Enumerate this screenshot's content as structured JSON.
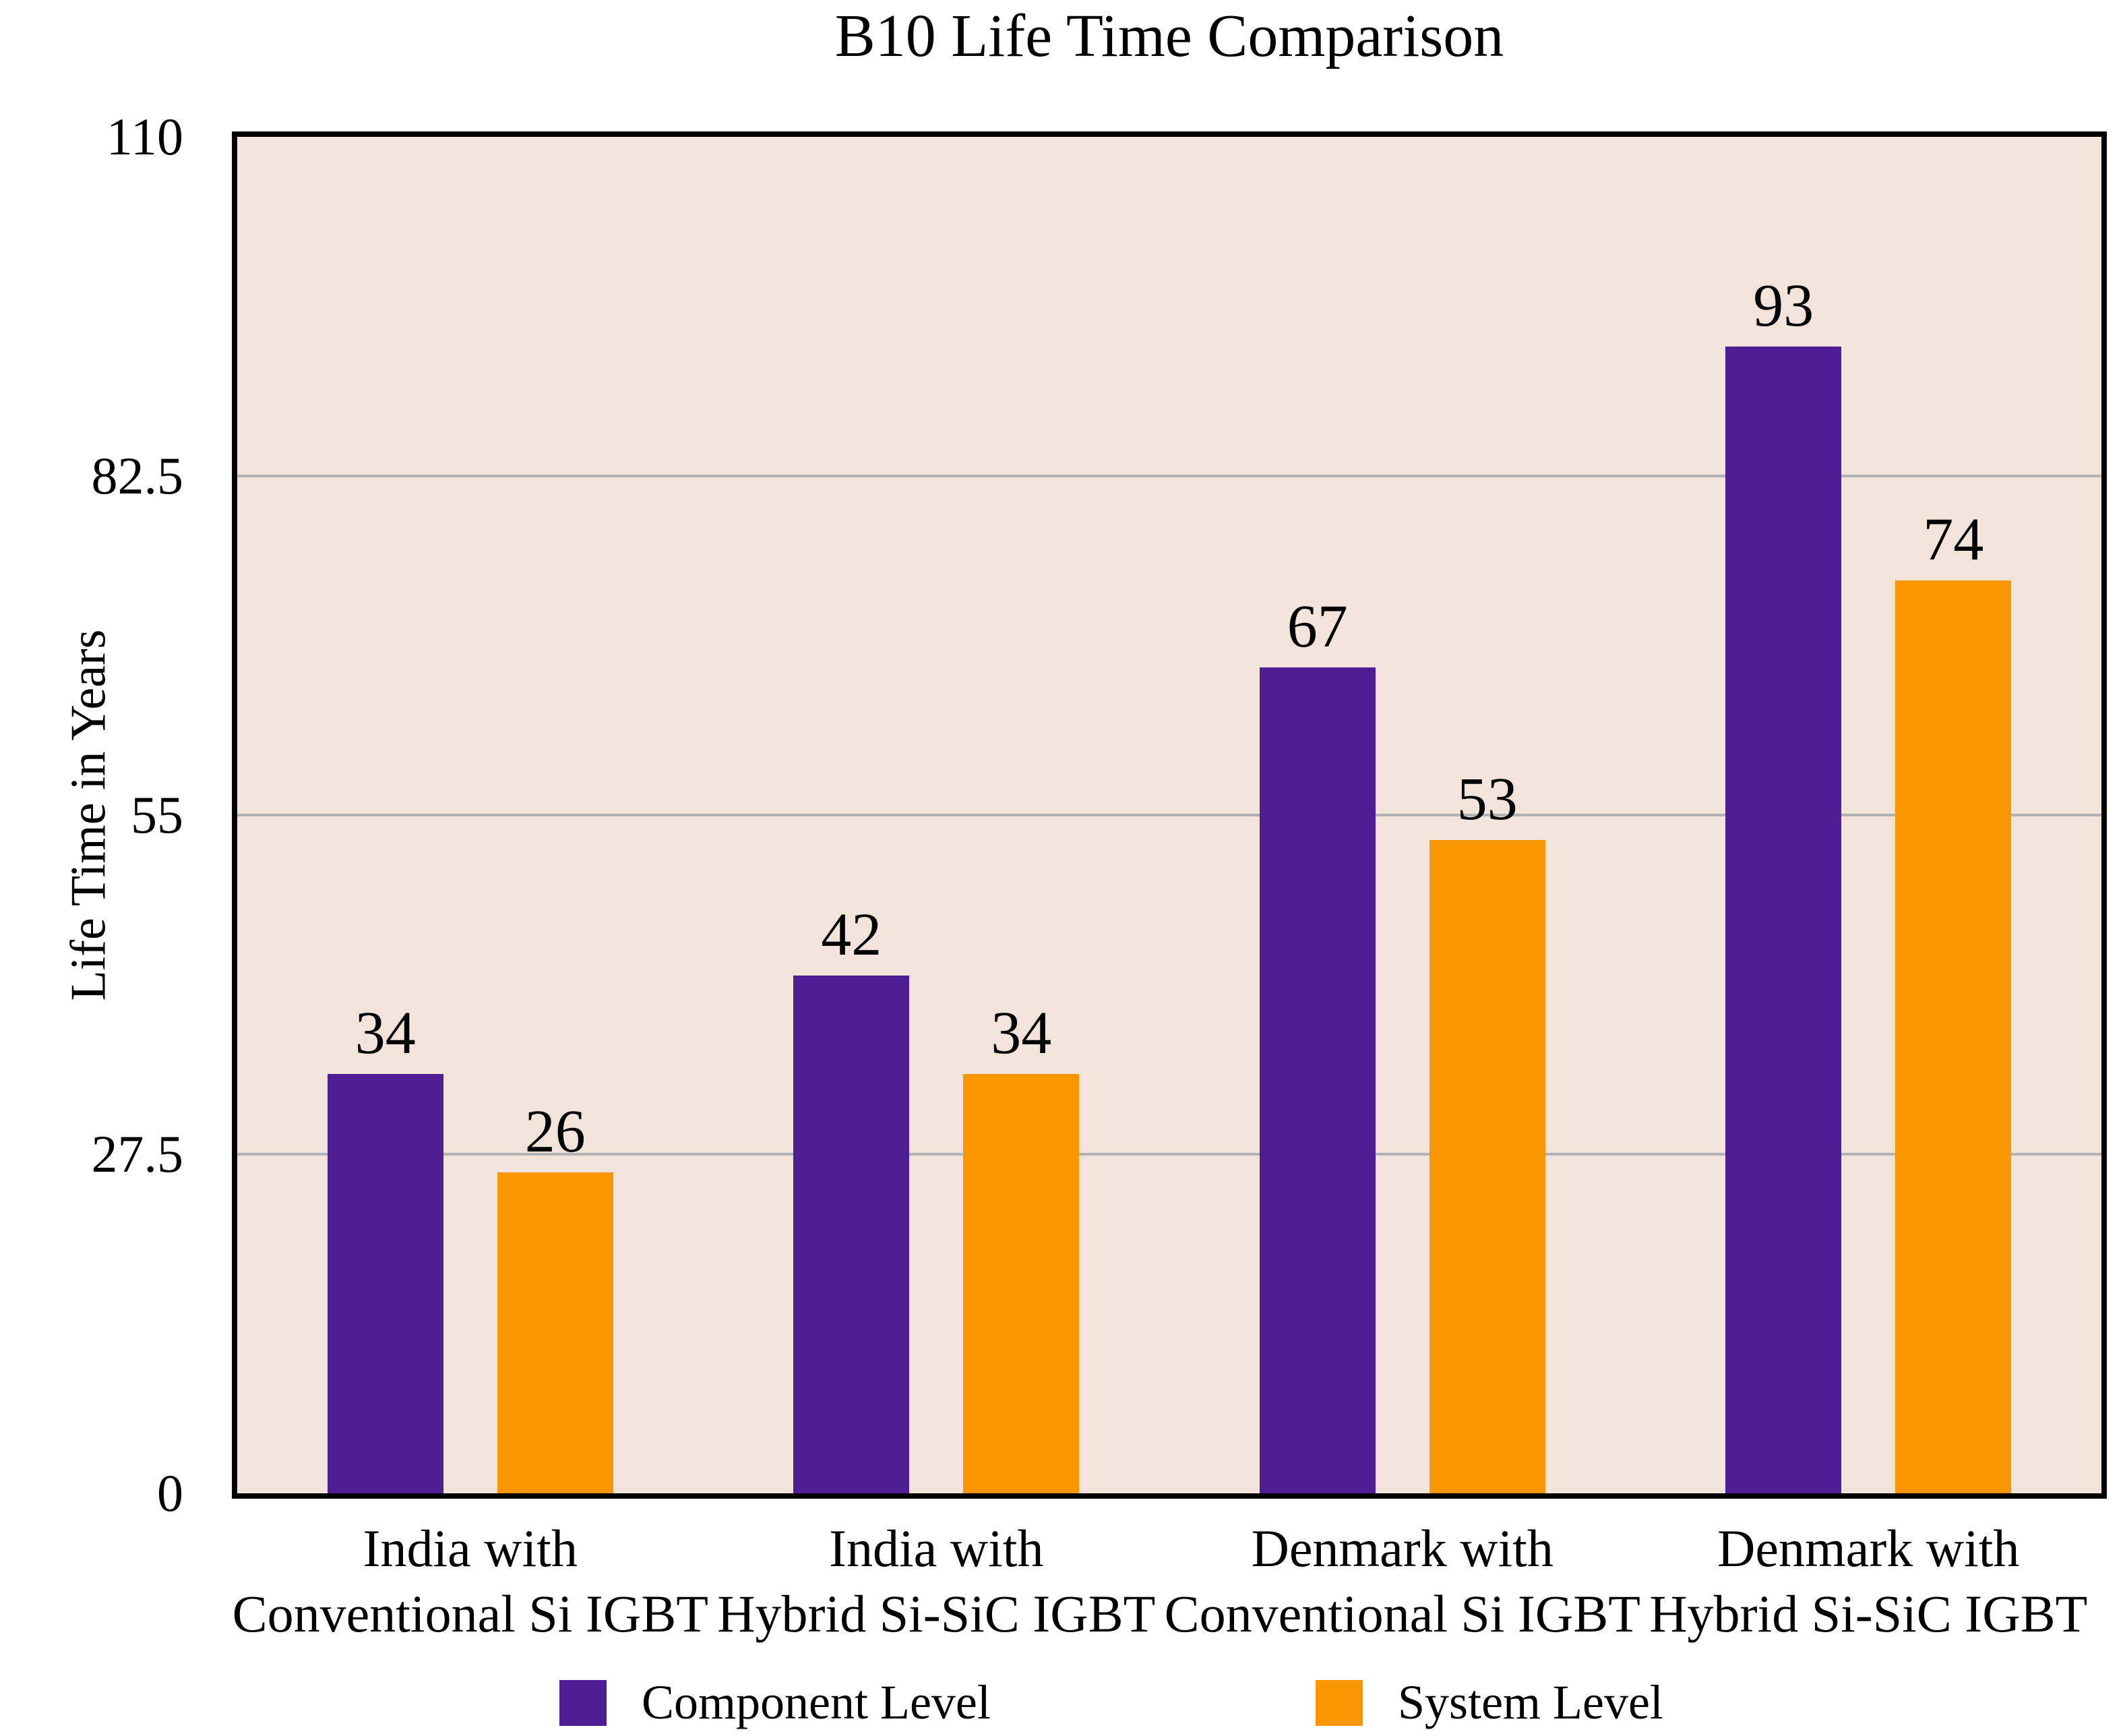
{
  "chart_data": {
    "type": "bar",
    "title": "B10 Life Time Comparison",
    "xlabel": "",
    "ylabel": "Life Time in Years",
    "ylim": [
      0,
      110
    ],
    "yticks": [
      0,
      27.5,
      55,
      82.5,
      110
    ],
    "ytick_labels": [
      "0",
      "27.5",
      "55",
      "82.5",
      "110"
    ],
    "grid": "horizontal",
    "legend_position": "bottom",
    "plot_background": "#F2E4DB",
    "gridline_color": "#B0B2B4",
    "frame_color": "#000000",
    "categories": [
      {
        "line1": "India with",
        "line2": "Conventional Si IGBT"
      },
      {
        "line1": "India with",
        "line2": "Hybrid Si-SiC IGBT"
      },
      {
        "line1": "Denmark with",
        "line2": "Conventional Si IGBT"
      },
      {
        "line1": "Denmark with",
        "line2": "Hybrid Si-SiC IGBT"
      }
    ],
    "series": [
      {
        "name": "Component Level",
        "color": "#4F1E95",
        "values": [
          34,
          42,
          67,
          93
        ]
      },
      {
        "name": "System Level",
        "color": "#FA9601",
        "values": [
          26,
          34,
          53,
          74
        ]
      }
    ]
  },
  "legend": {
    "items": [
      {
        "label": "Component Level",
        "color": "#4F1E95"
      },
      {
        "label": "System Level",
        "color": "#FA9601"
      }
    ]
  }
}
